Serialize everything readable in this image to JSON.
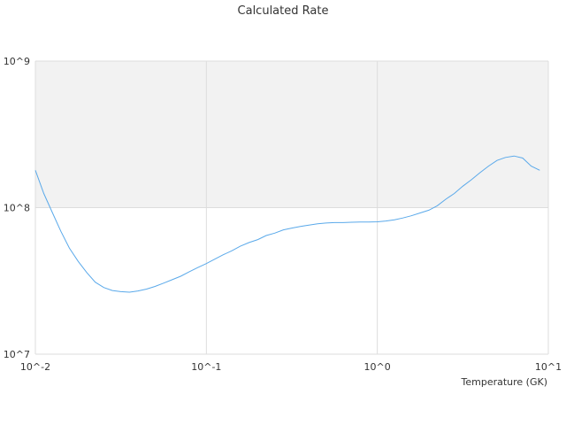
{
  "chart_data": {
    "type": "line",
    "title": "Calculated Rate",
    "xlabel": "Temperature (GK)",
    "ylabel": "",
    "x_scale": "log",
    "y_scale": "log",
    "xlim": [
      0.01,
      10
    ],
    "ylim": [
      10000000,
      1000000000
    ],
    "x_tick_labels": [
      "10^-2",
      "10^-1",
      "10^0",
      "10^1"
    ],
    "y_tick_labels": [
      "10^9",
      "10^8",
      "10^7"
    ],
    "grid": true,
    "legend": "none",
    "colors": {
      "line": "#5aa9ea",
      "band": "#f2f2f2",
      "grid": "#dddddd",
      "axis": "#cccccc"
    },
    "series": [
      {
        "x": [
          0.01,
          0.0112,
          0.0126,
          0.0141,
          0.0158,
          0.0178,
          0.02,
          0.0224,
          0.0251,
          0.0282,
          0.0316,
          0.0355,
          0.0398,
          0.0447,
          0.0501,
          0.0562,
          0.0631,
          0.0708,
          0.0794,
          0.0891,
          0.1,
          0.112,
          0.126,
          0.141,
          0.158,
          0.178,
          0.2,
          0.224,
          0.251,
          0.282,
          0.316,
          0.355,
          0.398,
          0.447,
          0.501,
          0.562,
          0.631,
          0.708,
          0.794,
          0.891,
          1.0,
          1.12,
          1.26,
          1.41,
          1.58,
          1.78,
          2.0,
          2.24,
          2.51,
          2.82,
          3.16,
          3.55,
          3.98,
          4.47,
          5.01,
          5.62,
          6.31,
          7.08,
          7.94,
          8.91
        ],
        "y": [
          180000000,
          125000000,
          92000000,
          69000000,
          53000000,
          43000000,
          36000000,
          31000000,
          28500000,
          27200000,
          26700000,
          26500000,
          27000000,
          27800000,
          29000000,
          30500000,
          32200000,
          34000000,
          36500000,
          39000000,
          41500000,
          44500000,
          47800000,
          50800000,
          54500000,
          57800000,
          60500000,
          64500000,
          67000000,
          70500000,
          72500000,
          74500000,
          76000000,
          77500000,
          78500000,
          79000000,
          79000000,
          79500000,
          79800000,
          79800000,
          80000000,
          81000000,
          82500000,
          85000000,
          88000000,
          92000000,
          96000000,
          103000000,
          114000000,
          125000000,
          140000000,
          155000000,
          173000000,
          192000000,
          210000000,
          220000000,
          225000000,
          218000000,
          192000000,
          180000000
        ]
      }
    ]
  }
}
